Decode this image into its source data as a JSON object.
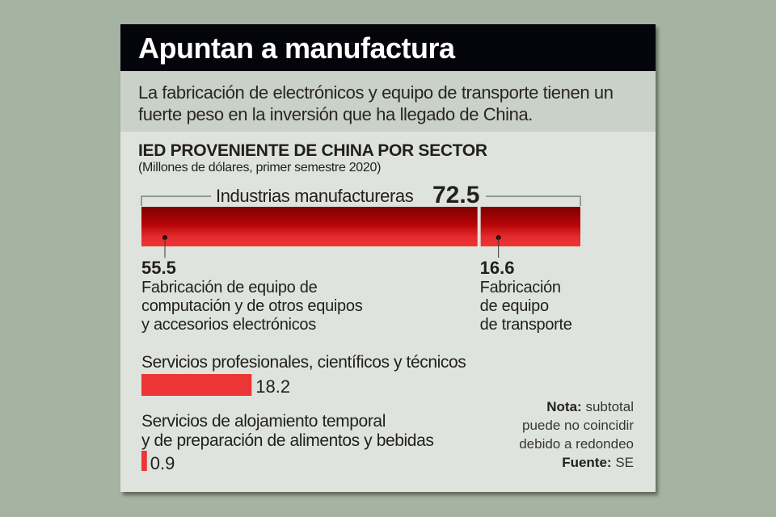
{
  "header": {
    "title": "Apuntan a manufactura"
  },
  "lede": "La fabricación de electrónicos y equipo de transporte tienen un fuerte peso en la inversión que ha llegado de China.",
  "colors": {
    "background": "#a7b3a2",
    "card": "#dfe3dd",
    "header_bg": "#04050b",
    "lede_band": "#c9d1c8",
    "bar_red": "#ee3535",
    "bar_dark_red": "#7d0000",
    "text": "#231f1c"
  },
  "chart_data": {
    "type": "bar",
    "title": "IED PROVENIENTE DE CHINA POR SECTOR",
    "subtitle": "(Millones de dólares, primer semestre 2020)",
    "unit": "Millones de dólares",
    "scale_max": 72.5,
    "stacked_group": {
      "label": "Industrias manufactureras",
      "value": 72.5,
      "value_label": "72.5",
      "segments": [
        {
          "name": "Fabricación de equipo de computación y de otros equipos y accesorios electrónicos",
          "label_lines": [
            "Fabricación de equipo de",
            "computación y de otros equipos",
            "y accesorios electrónicos"
          ],
          "value": 55.5,
          "value_label": "55.5"
        },
        {
          "name": "Fabricación de equipo de transporte",
          "label_lines": [
            "Fabricación",
            "de equipo",
            "de transporte"
          ],
          "value": 16.6,
          "value_label": "16.6"
        }
      ]
    },
    "bars": [
      {
        "label_lines": [
          "Servicios profesionales, científicos y técnicos"
        ],
        "value": 18.2,
        "value_label": "18.2"
      },
      {
        "label_lines": [
          "Servicios de alojamiento temporal",
          "y de preparación de alimentos y bebidas"
        ],
        "value": 0.9,
        "value_label": "0.9"
      }
    ]
  },
  "note": {
    "nota_label": "Nota:",
    "nota_text_lines": [
      "subtotal",
      "puede no coincidir",
      "debido a redondeo"
    ],
    "source_label": "Fuente:",
    "source_text": "SE"
  }
}
